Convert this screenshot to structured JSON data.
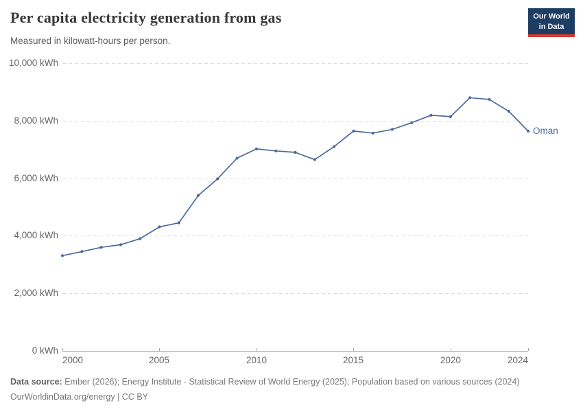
{
  "header": {
    "logo": {
      "line1": "Our World",
      "line2": "in Data"
    }
  },
  "chart_data": {
    "type": "line",
    "title": "Per capita electricity generation from gas",
    "subtitle": "Measured in kilowatt-hours per person.",
    "unit": "kWh",
    "x": [
      2000,
      2001,
      2002,
      2003,
      2004,
      2005,
      2006,
      2007,
      2008,
      2009,
      2010,
      2011,
      2012,
      2013,
      2014,
      2015,
      2016,
      2017,
      2018,
      2019,
      2020,
      2021,
      2022,
      2023,
      2024
    ],
    "series": [
      {
        "name": "Oman",
        "color": "#4C6A9C",
        "values": [
          3310,
          3450,
          3600,
          3690,
          3900,
          4310,
          4450,
          5400,
          5980,
          6700,
          7020,
          6950,
          6900,
          6650,
          7100,
          7640,
          7570,
          7700,
          7930,
          8190,
          8140,
          8800,
          8740,
          8330,
          7640
        ]
      }
    ],
    "xlim": [
      2000,
      2024
    ],
    "ylim": [
      0,
      10000
    ],
    "x_ticks": [
      {
        "value": 2000,
        "label": "2000"
      },
      {
        "value": 2005,
        "label": "2005"
      },
      {
        "value": 2010,
        "label": "2010"
      },
      {
        "value": 2015,
        "label": "2015"
      },
      {
        "value": 2020,
        "label": "2020"
      },
      {
        "value": 2024,
        "label": "2024"
      }
    ],
    "y_ticks": [
      {
        "value": 0,
        "label": "0 kWh"
      },
      {
        "value": 2000,
        "label": "2,000 kWh"
      },
      {
        "value": 4000,
        "label": "4,000 kWh"
      },
      {
        "value": 6000,
        "label": "6,000 kWh"
      },
      {
        "value": 8000,
        "label": "8,000 kWh"
      },
      {
        "value": 10000,
        "label": "10,000 kWh"
      }
    ],
    "grid": "horizontal-dashed",
    "legend": "end-of-line-label",
    "markers": "point-per-year"
  },
  "footer": {
    "source_label": "Data source:",
    "source_text": " Ember (2026); Energy Institute - Statistical Review of World Energy (2025); Population based on various sources (2024)",
    "license_line": "OurWorldinData.org/energy | CC BY"
  },
  "colors": {
    "line": "#4C6A9C",
    "grid": "#dcdcdc",
    "axis": "#a6a6a6",
    "tick_text": "#666666",
    "title_text": "#383838",
    "logo_bg": "#1d3d63",
    "logo_stripe": "#d73a34"
  }
}
